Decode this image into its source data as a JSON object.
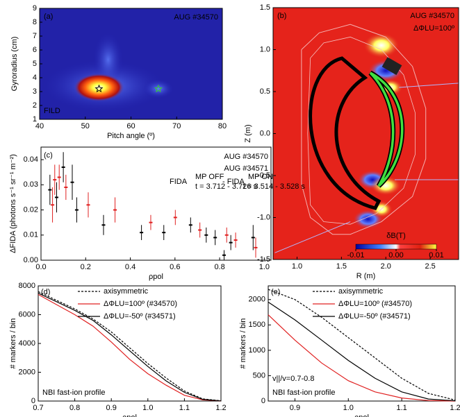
{
  "chart_data": [
    {
      "type": "heatmap",
      "panel_label": "(a)",
      "title": "AUG #34570",
      "annotation": "FILD",
      "xlabel": "Pitch angle (º)",
      "ylabel": "Gyroradius (cm)",
      "xlim": [
        40,
        80
      ],
      "ylim": [
        1,
        9
      ],
      "xticks": [
        40,
        50,
        60,
        70,
        80
      ],
      "yticks": [
        1,
        2,
        3,
        4,
        5,
        6,
        7,
        8,
        9
      ],
      "markers": {
        "x": [
          53,
          66
        ],
        "y": [
          3.2,
          3.2
        ],
        "colors": [
          "#000000",
          "#33cc33"
        ]
      }
    },
    {
      "type": "contour",
      "panel_label": "(b)",
      "title": "AUG #34570",
      "subtitle": "ΔΦLU=100º",
      "xlabel": "R (m)",
      "ylabel": "Z (m)",
      "xlim": [
        0.73,
        2.82
      ],
      "ylim": [
        -1.5,
        1.5
      ],
      "xticks": [
        {
          "value": 1,
          "label": "1.0"
        },
        {
          "value": 1.5,
          "label": "1.5"
        },
        {
          "value": 2,
          "label": "2.0"
        },
        {
          "value": 2.5,
          "label": "2.5"
        }
      ],
      "yticks": [
        {
          "value": -1.5,
          "label": "-1.5"
        },
        {
          "value": -1,
          "label": "-1.0"
        },
        {
          "value": -0.5,
          "label": "-0.5"
        },
        {
          "value": 0,
          "label": "0.0"
        },
        {
          "value": 0.5,
          "label": "0.5"
        },
        {
          "value": 1,
          "label": "1.0"
        },
        {
          "value": 1.5,
          "label": "1.5"
        }
      ],
      "colorbar": {
        "label": "δB(T)",
        "lim": [
          -0.01,
          0.01
        ],
        "ticks": [
          {
            "value": -0.01,
            "label": "-0.01"
          },
          {
            "value": 0,
            "label": "0.00"
          },
          {
            "value": 0.01,
            "label": "0.01"
          }
        ]
      }
    },
    {
      "type": "errorbar",
      "panel_label": "(c)",
      "annotation": {
        "left": "FIDA",
        "left_sup": "MP OFF",
        "left_sub": "t = 3.712 - 3.726 s",
        "right": "- FIDA",
        "right_sup": "MP ON",
        "right_sub": "t = 3.514 - 3.528 s"
      },
      "xlabel": "ρpol",
      "ylabel": "ΔFIDA (photons s⁻¹ sr⁻¹ m⁻²)",
      "xlim": [
        0,
        1.03
      ],
      "ylim": [
        0,
        0.045
      ],
      "xticks": [
        {
          "value": 0,
          "label": "0.0"
        },
        0.2,
        0.4,
        0.6,
        0.8,
        {
          "value": 1,
          "label": "1.0"
        }
      ],
      "yticks": [
        {
          "value": 0,
          "label": "0.00"
        },
        0.01,
        0.02,
        0.03,
        0.04
      ],
      "series": [
        {
          "name": "AUG #34570",
          "color": "#e02020",
          "x": [
            0.05,
            0.06,
            0.08,
            0.11,
            0.21,
            0.33,
            0.49,
            0.6,
            0.71,
            0.83,
            0.87,
            0.96
          ],
          "values": [
            0.022,
            0.032,
            0.033,
            0.029,
            0.022,
            0.02,
            0.015,
            0.017,
            0.012,
            0.01,
            0.008,
            0.005
          ],
          "errors": [
            0.007,
            0.006,
            0.005,
            0.005,
            0.005,
            0.005,
            0.003,
            0.003,
            0.003,
            0.003,
            0.003,
            0.004
          ]
        },
        {
          "name": "AUG #34571",
          "color": "#000000",
          "x": [
            0.04,
            0.07,
            0.1,
            0.14,
            0.16,
            0.28,
            0.45,
            0.55,
            0.67,
            0.74,
            0.78,
            0.82,
            0.85,
            0.95
          ],
          "values": [
            0.028,
            0.025,
            0.037,
            0.031,
            0.02,
            0.014,
            0.011,
            0.011,
            0.014,
            0.01,
            0.009,
            0.002,
            0.007,
            0.009
          ],
          "errors": [
            0.006,
            0.006,
            0.006,
            0.007,
            0.005,
            0.004,
            0.003,
            0.003,
            0.003,
            0.003,
            0.003,
            0.002,
            0.003,
            0.005
          ]
        }
      ]
    },
    {
      "type": "line",
      "panel_label": "(d)",
      "annotation": "NBI fast-ion profile",
      "xlabel": "ρpol",
      "ylabel": "# markers / bin",
      "xlim": [
        0.7,
        1.2
      ],
      "ylim": [
        0,
        8000
      ],
      "xticks": [
        0.7,
        0.8,
        0.9,
        {
          "value": 1,
          "label": "1.0"
        },
        1.1,
        1.2
      ],
      "yticks": [
        0,
        2000,
        4000,
        6000,
        8000
      ],
      "x": [
        0.7,
        0.75,
        0.8,
        0.85,
        0.9,
        0.95,
        1,
        1.05,
        1.1,
        1.15,
        1.2
      ],
      "series": [
        {
          "name": "axisymmetric",
          "color": "#000000",
          "dotted": true,
          "values": [
            7600,
            7000,
            6400,
            5700,
            4800,
            3700,
            2600,
            1600,
            700,
            150,
            20
          ]
        },
        {
          "name": "ΔΦLU=100º (#34570)",
          "color": "#e02020",
          "dotted": false,
          "values": [
            7400,
            6700,
            6000,
            5200,
            4100,
            2900,
            1900,
            1100,
            400,
            80,
            10
          ]
        },
        {
          "name": "ΔΦLU=-50º  (#34571)",
          "color": "#000000",
          "dotted": false,
          "values": [
            7500,
            6900,
            6300,
            5600,
            4600,
            3500,
            2400,
            1400,
            600,
            120,
            10
          ]
        }
      ]
    },
    {
      "type": "line",
      "panel_label": "(e)",
      "annotation": "NBI fast-ion profile",
      "annotation2": "v||/v=0.7-0.8",
      "xlabel": "ρpol",
      "ylabel": "# markers / bin",
      "xlim": [
        0.85,
        1.2
      ],
      "ylim": [
        0,
        2270
      ],
      "xticks": [
        0.9,
        {
          "value": 1,
          "label": "1.0"
        },
        1.1,
        1.2
      ],
      "yticks": [
        0,
        500,
        1000,
        1500,
        2000
      ],
      "x": [
        0.85,
        0.9,
        0.95,
        1,
        1.05,
        1.1,
        1.15,
        1.2
      ],
      "series": [
        {
          "name": "axisymmetric",
          "color": "#000000",
          "dotted": true,
          "values": [
            2200,
            2000,
            1650,
            1250,
            850,
            450,
            150,
            20
          ]
        },
        {
          "name": "ΔΦLU=100º (#34570)",
          "color": "#e02020",
          "dotted": false,
          "values": [
            1700,
            1200,
            750,
            400,
            180,
            60,
            10,
            0
          ]
        },
        {
          "name": "ΔΦLU=-50º  (#34571)",
          "color": "#000000",
          "dotted": false,
          "values": [
            1950,
            1600,
            1200,
            800,
            450,
            180,
            40,
            5
          ]
        }
      ]
    }
  ]
}
